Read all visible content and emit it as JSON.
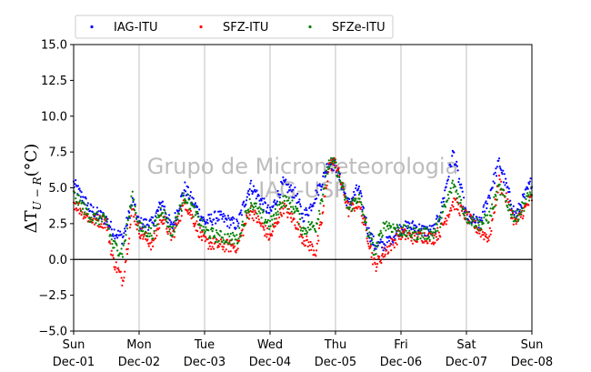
{
  "chart_data": {
    "type": "scatter",
    "ylabel": "ΔT_{U−R}(°C)",
    "ylabel_parts": {
      "delta": "ΔT",
      "sub": "U − R",
      "unit": "(°C)"
    },
    "ylim": [
      -5.0,
      15.0
    ],
    "yticks": [
      "−5.0",
      "−2.5",
      "0.0",
      "2.5",
      "5.0",
      "7.5",
      "10.0",
      "12.5",
      "15.0"
    ],
    "xlim": [
      "2019-12-01",
      "2019-12-08"
    ],
    "xticks": [
      {
        "day": "Sun",
        "date": "Dec-01"
      },
      {
        "day": "Mon",
        "date": "Dec-02"
      },
      {
        "day": "Tue",
        "date": "Dec-03"
      },
      {
        "day": "Wed",
        "date": "Dec-04"
      },
      {
        "day": "Thu",
        "date": "Dec-05"
      },
      {
        "day": "Fri",
        "date": "Dec-06"
      },
      {
        "day": "Sat",
        "date": "Dec-07"
      },
      {
        "day": "Sun",
        "date": "Dec-08"
      }
    ],
    "grid": "vertical",
    "reference_line": 0.0,
    "legend_position": "top-left",
    "watermark": [
      "Grupo de Micrometeorologia",
      "IAG-USP"
    ],
    "series_x_days": [
      0,
      0.25,
      0.5,
      0.6,
      0.75,
      0.9,
      1.0,
      1.2,
      1.35,
      1.5,
      1.7,
      2.0,
      2.2,
      2.5,
      2.7,
      3.0,
      3.2,
      3.4,
      3.5,
      3.6,
      3.7,
      3.8,
      3.9,
      4.0,
      4.2,
      4.35,
      4.5,
      4.6,
      4.75,
      5.0,
      5.2,
      5.35,
      5.5,
      5.6,
      5.8,
      6.0,
      6.2,
      6.35,
      6.5,
      6.75,
      7.0
    ],
    "series": [
      {
        "name": "IAG-ITU",
        "color": "#0000ff",
        "values": [
          5.3,
          3.5,
          2.8,
          2.0,
          1.5,
          4.0,
          2.5,
          2.5,
          4.0,
          2.2,
          5.0,
          2.6,
          3.0,
          2.4,
          5.2,
          3.2,
          5.3,
          4.5,
          3.0,
          3.5,
          4.5,
          5.5,
          6.8,
          6.5,
          3.8,
          5.0,
          2.0,
          1.0,
          1.0,
          2.2,
          2.3,
          2.0,
          2.0,
          3.2,
          7.5,
          3.0,
          2.5,
          4.5,
          6.8,
          3.0,
          5.5
        ]
      },
      {
        "name": "SFZ-ITU",
        "color": "#ff0000",
        "values": [
          4.0,
          2.8,
          2.6,
          0.0,
          -1.5,
          3.5,
          2.0,
          1.0,
          3.0,
          1.5,
          4.0,
          1.2,
          1.0,
          0.9,
          3.5,
          1.5,
          3.7,
          2.5,
          1.5,
          1.0,
          0.5,
          3.0,
          6.5,
          6.8,
          3.4,
          4.0,
          1.5,
          -0.5,
          0.5,
          1.8,
          1.5,
          1.6,
          1.5,
          2.0,
          4.0,
          3.0,
          2.0,
          1.5,
          5.5,
          2.5,
          4.3
        ]
      },
      {
        "name": "SFZe-ITU",
        "color": "#008000",
        "values": [
          4.5,
          3.0,
          2.7,
          1.0,
          0.5,
          4.5,
          2.2,
          1.8,
          3.6,
          1.8,
          4.5,
          2.0,
          1.6,
          1.4,
          4.0,
          2.4,
          4.2,
          3.5,
          2.0,
          2.3,
          2.3,
          4.5,
          6.7,
          6.6,
          3.5,
          4.4,
          1.8,
          0.5,
          2.5,
          2.0,
          1.8,
          1.8,
          1.8,
          2.7,
          5.3,
          3.0,
          2.4,
          3.0,
          5.0,
          2.8,
          4.8
        ]
      }
    ]
  }
}
